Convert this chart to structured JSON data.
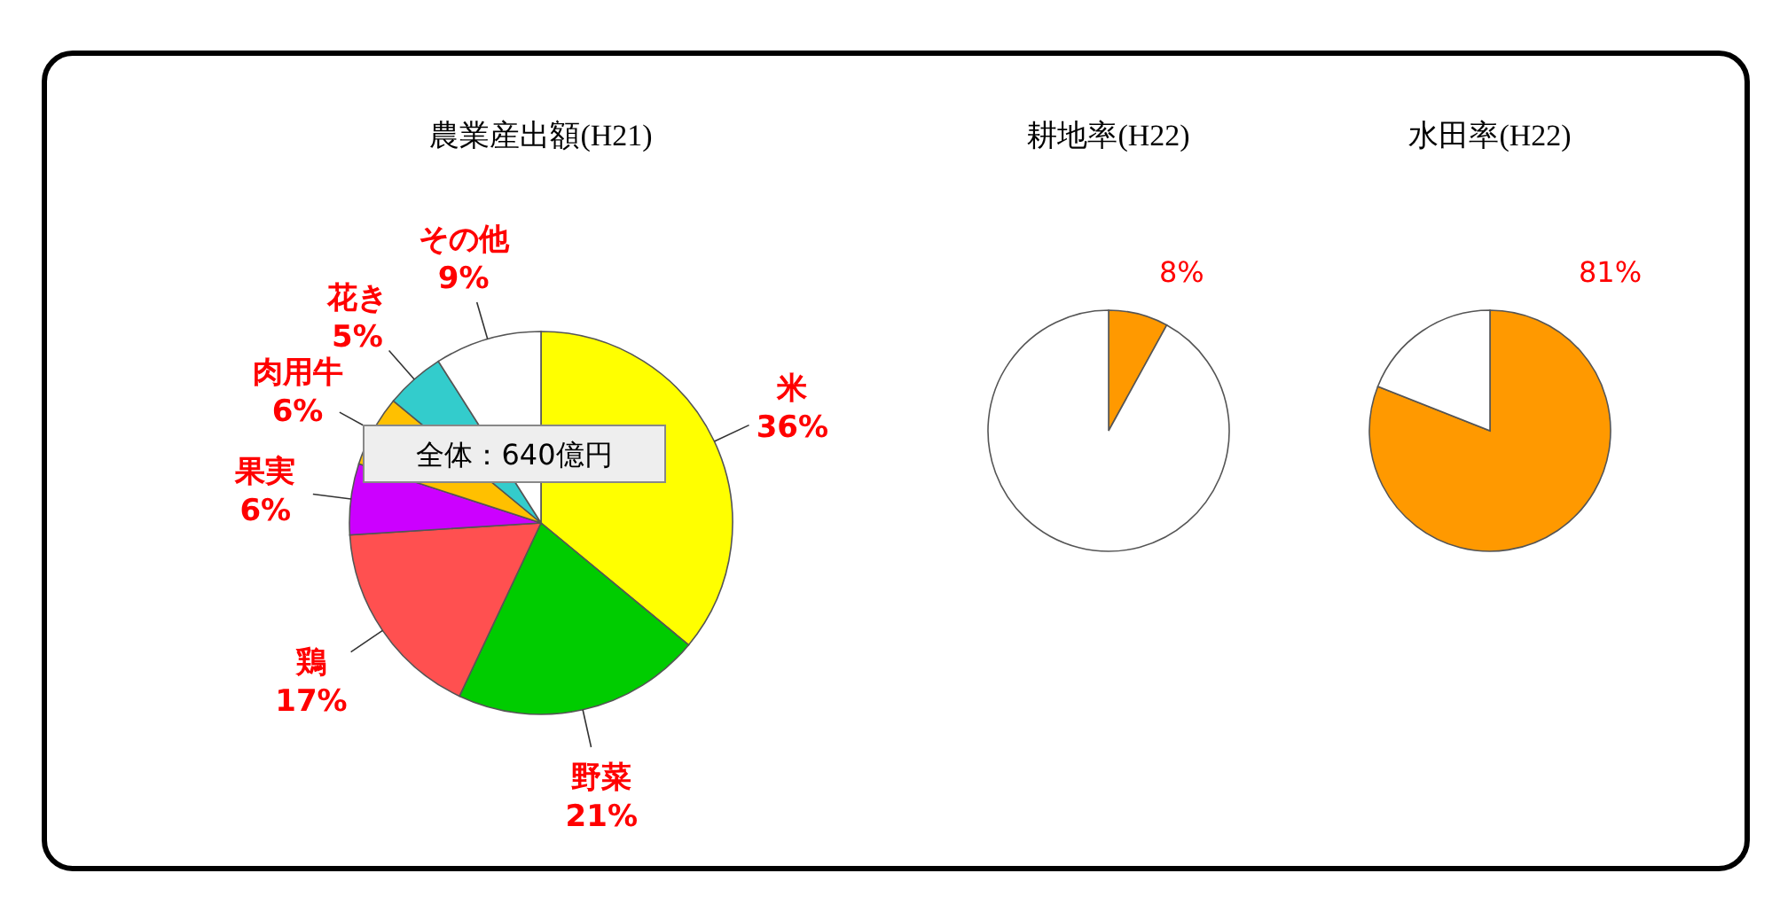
{
  "chart_data": [
    {
      "type": "pie",
      "title": "農業産出額(H21)",
      "categories": [
        "米",
        "野菜",
        "鶏",
        "果実",
        "肉用牛",
        "花き",
        "その他"
      ],
      "values": [
        36,
        21,
        17,
        6,
        6,
        5,
        9
      ],
      "colors": [
        "#ffff00",
        "#00cc00",
        "#ff5050",
        "#cc00ff",
        "#ffc000",
        "#33cccc",
        "#ffffff"
      ],
      "value_labels": [
        "36%",
        "21%",
        "17%",
        "6%",
        "6%",
        "5%",
        "9%"
      ],
      "annotations": [
        "全体：640億円"
      ]
    },
    {
      "type": "pie",
      "title": "耕地率(H22)",
      "categories": [
        null,
        null
      ],
      "values": [
        8,
        92
      ],
      "colors": [
        "#ff9900",
        "#ffffff"
      ],
      "value_labels": [
        "8%",
        null
      ]
    },
    {
      "type": "pie",
      "title": "水田率(H22)",
      "categories": [
        null,
        null
      ],
      "values": [
        81,
        19
      ],
      "colors": [
        "#ff9900",
        "#ffffff"
      ],
      "value_labels": [
        "81%",
        null
      ]
    }
  ]
}
